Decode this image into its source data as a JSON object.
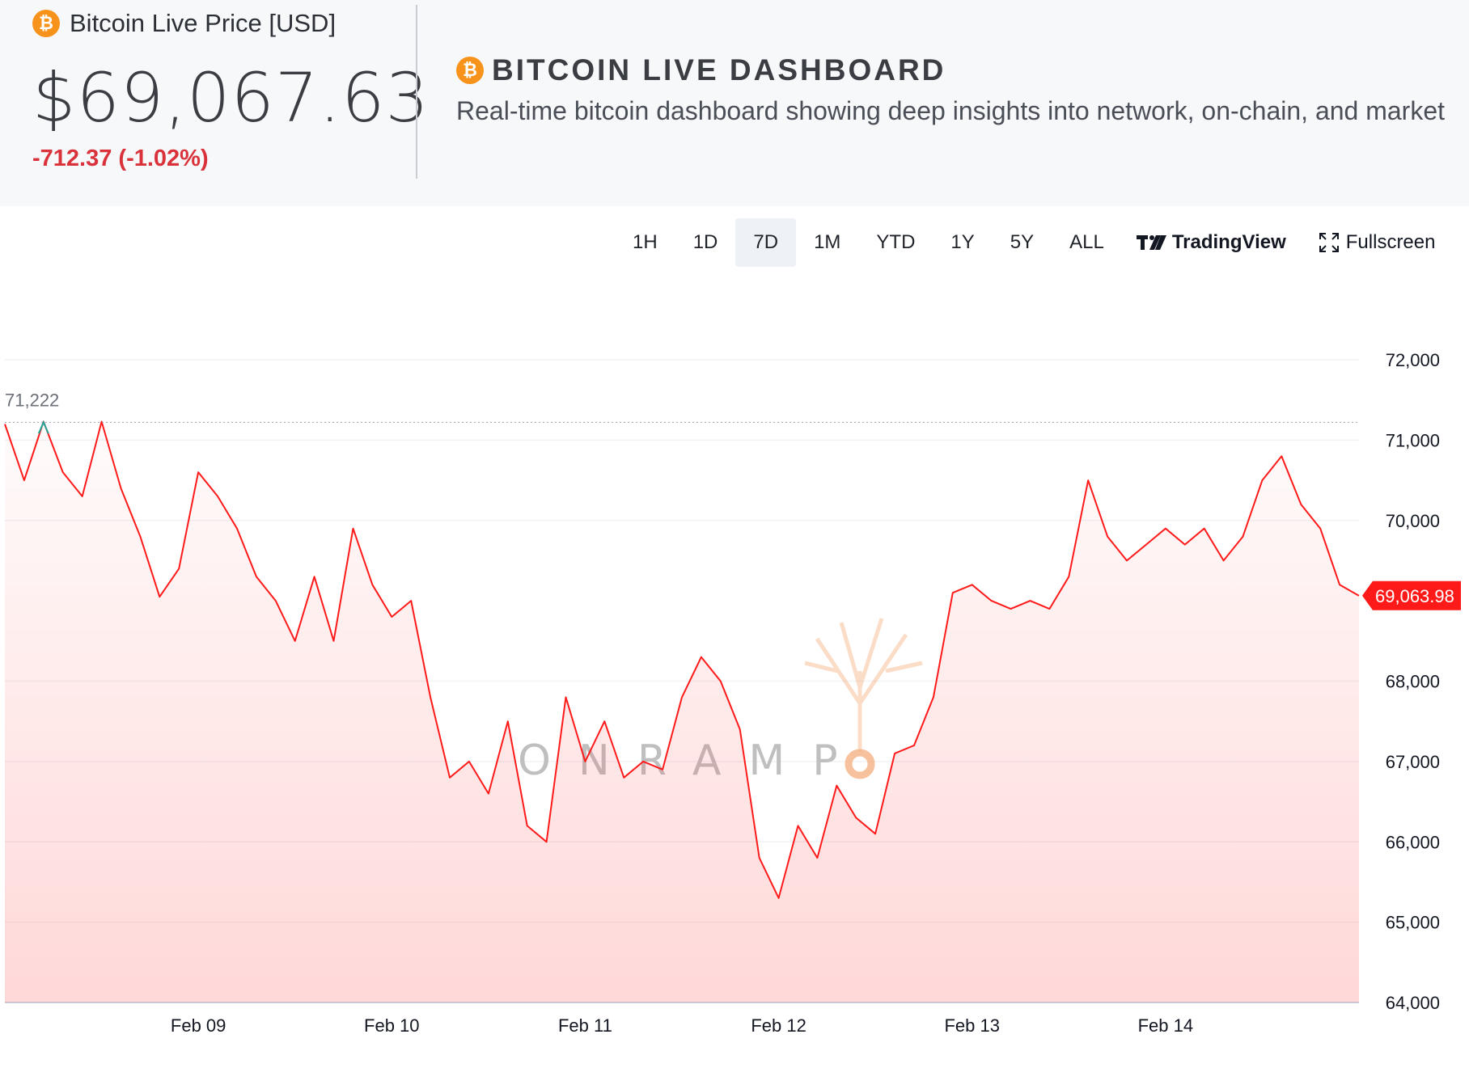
{
  "header": {
    "price_label": "Bitcoin Live Price [USD]",
    "price": "$69,067.63",
    "change": "-712.37 (-1.02%)",
    "dashboard_title": "BITCOIN LIVE DASHBOARD",
    "dashboard_subtitle": "Real-time bitcoin dashboard showing deep insights into network, on-chain, and market",
    "coin_icon": "bitcoin-coin-icon"
  },
  "toolbar": {
    "ranges": [
      "1H",
      "1D",
      "7D",
      "1M",
      "YTD",
      "1Y",
      "5Y",
      "ALL"
    ],
    "active_range": "7D",
    "tradingview_label": "TradingView",
    "fullscreen_label": "Fullscreen"
  },
  "colors": {
    "accent_orange": "#f7931a",
    "line_red": "#ff1a1a",
    "negative": "#d9323a",
    "high_marker": "#26a69a"
  },
  "chart_data": {
    "type": "area",
    "title": "",
    "xlabel": "",
    "ylabel": "",
    "ylim": [
      64000,
      72000
    ],
    "x_range": [
      0,
      7
    ],
    "y_ticks": [
      "72,000",
      "71,000",
      "70,000",
      "68,000",
      "67,000",
      "66,000",
      "65,000",
      "64,000"
    ],
    "x_tick_labels": [
      "Feb 09",
      "Feb 10",
      "Feb 11",
      "Feb 12",
      "Feb 13",
      "Feb 14"
    ],
    "high_label": "71,222",
    "last_price_label": "69,063.98",
    "watermark": "ONRAMP",
    "grid": true,
    "series": [
      {
        "x": [
          0,
          0.1,
          0.2,
          0.3,
          0.4,
          0.5,
          0.6,
          0.7,
          0.8,
          0.9,
          1.0,
          1.1,
          1.2,
          1.3,
          1.4,
          1.5,
          1.6,
          1.7,
          1.8,
          1.9,
          2.0,
          2.1,
          2.2,
          2.3,
          2.4,
          2.5,
          2.6,
          2.7,
          2.8,
          2.9,
          3.0,
          3.1,
          3.2,
          3.3,
          3.4,
          3.5,
          3.6,
          3.7,
          3.8,
          3.9,
          4.0,
          4.1,
          4.2,
          4.3,
          4.4,
          4.5,
          4.6,
          4.7,
          4.8,
          4.9,
          5.0,
          5.1,
          5.2,
          5.3,
          5.4,
          5.5,
          5.6,
          5.7,
          5.8,
          5.9,
          6.0,
          6.1,
          6.2,
          6.3,
          6.4,
          6.5,
          6.6,
          6.7,
          6.8,
          6.9,
          7.0
        ],
        "y": [
          71200,
          70500,
          71230,
          70600,
          70300,
          71230,
          70400,
          69800,
          69050,
          69400,
          70600,
          70300,
          69900,
          69300,
          69000,
          68500,
          69300,
          68500,
          69900,
          69200,
          68800,
          69000,
          67800,
          66800,
          67000,
          66600,
          67500,
          66200,
          66000,
          67800,
          67000,
          67500,
          66800,
          67000,
          66900,
          67800,
          68300,
          68000,
          67400,
          65800,
          65300,
          66200,
          65800,
          66700,
          66300,
          66100,
          67100,
          67200,
          67800,
          69100,
          69200,
          69000,
          68900,
          69000,
          68900,
          69300,
          70500,
          69800,
          69500,
          69700,
          69900,
          69700,
          69900,
          69500,
          69800,
          70500,
          70800,
          70200,
          69900,
          69200,
          69063
        ]
      }
    ]
  }
}
